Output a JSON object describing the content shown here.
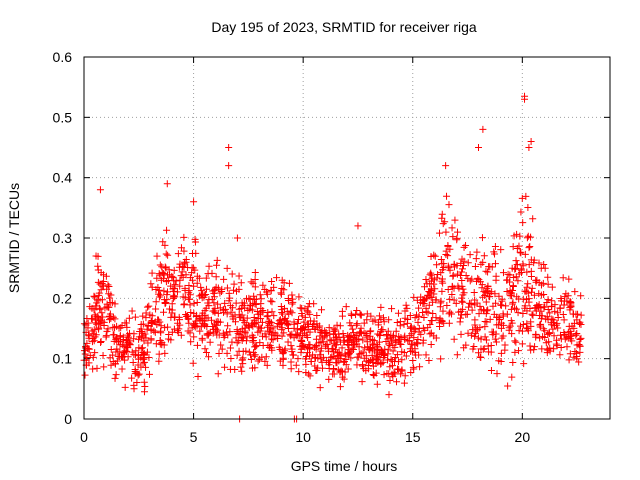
{
  "chart_data": {
    "type": "scatter",
    "title": "Day 195 of 2023, SRMTID for receiver riga",
    "xlabel": "GPS time / hours",
    "ylabel": "SRMTID / TECUs",
    "xlim": [
      0,
      24
    ],
    "ylim": [
      0,
      0.6
    ],
    "x_ticks": [
      0,
      5,
      10,
      15,
      20
    ],
    "x_tick_labels": [
      "0",
      "5",
      "10",
      "15",
      "20"
    ],
    "y_ticks": [
      0,
      0.1,
      0.2,
      0.3,
      0.4,
      0.5,
      0.6
    ],
    "y_tick_labels": [
      "0",
      "0.1",
      "0.2",
      "0.3",
      "0.4",
      "0.5",
      "0.6"
    ],
    "grid": true,
    "marker": "+",
    "series": [
      {
        "name": "riga",
        "color": "#ff0000",
        "x_range": [
          0,
          22.7
        ],
        "profile_hours": [
          0,
          0.5,
          0.8,
          1.5,
          2.5,
          3.0,
          3.8,
          4.5,
          5.0,
          5.5,
          6.5,
          7.5,
          8.5,
          9.5,
          10.0,
          10.5,
          11.5,
          12.5,
          13.5,
          14.5,
          15.0,
          15.5,
          16.2,
          16.7,
          17.5,
          18.5,
          19.5,
          20.0,
          20.5,
          21.5,
          22.7
        ],
        "profile_median": [
          0.12,
          0.16,
          0.2,
          0.12,
          0.11,
          0.16,
          0.2,
          0.22,
          0.2,
          0.18,
          0.17,
          0.15,
          0.16,
          0.15,
          0.14,
          0.12,
          0.11,
          0.13,
          0.12,
          0.11,
          0.14,
          0.16,
          0.22,
          0.24,
          0.2,
          0.2,
          0.19,
          0.24,
          0.2,
          0.16,
          0.15
        ],
        "profile_spread": [
          0.05,
          0.07,
          0.1,
          0.05,
          0.05,
          0.07,
          0.09,
          0.08,
          0.08,
          0.07,
          0.07,
          0.06,
          0.06,
          0.06,
          0.05,
          0.05,
          0.04,
          0.05,
          0.05,
          0.05,
          0.06,
          0.08,
          0.1,
          0.1,
          0.08,
          0.1,
          0.09,
          0.12,
          0.09,
          0.06,
          0.05
        ],
        "point_count": 1800,
        "outliers": [
          {
            "x": 0.75,
            "y": 0.38
          },
          {
            "x": 3.8,
            "y": 0.39
          },
          {
            "x": 5.0,
            "y": 0.36
          },
          {
            "x": 6.6,
            "y": 0.45
          },
          {
            "x": 6.6,
            "y": 0.42
          },
          {
            "x": 7.0,
            "y": 0.3
          },
          {
            "x": 12.5,
            "y": 0.32
          },
          {
            "x": 16.5,
            "y": 0.42
          },
          {
            "x": 18.2,
            "y": 0.48
          },
          {
            "x": 18.0,
            "y": 0.45
          },
          {
            "x": 20.1,
            "y": 0.535
          },
          {
            "x": 20.1,
            "y": 0.53
          },
          {
            "x": 20.4,
            "y": 0.46
          },
          {
            "x": 20.3,
            "y": 0.45
          }
        ],
        "zero_points": [
          {
            "x": 7.1,
            "y": 0.0
          },
          {
            "x": 9.6,
            "y": 0.0
          },
          {
            "x": 9.7,
            "y": 0.0
          }
        ]
      }
    ]
  }
}
